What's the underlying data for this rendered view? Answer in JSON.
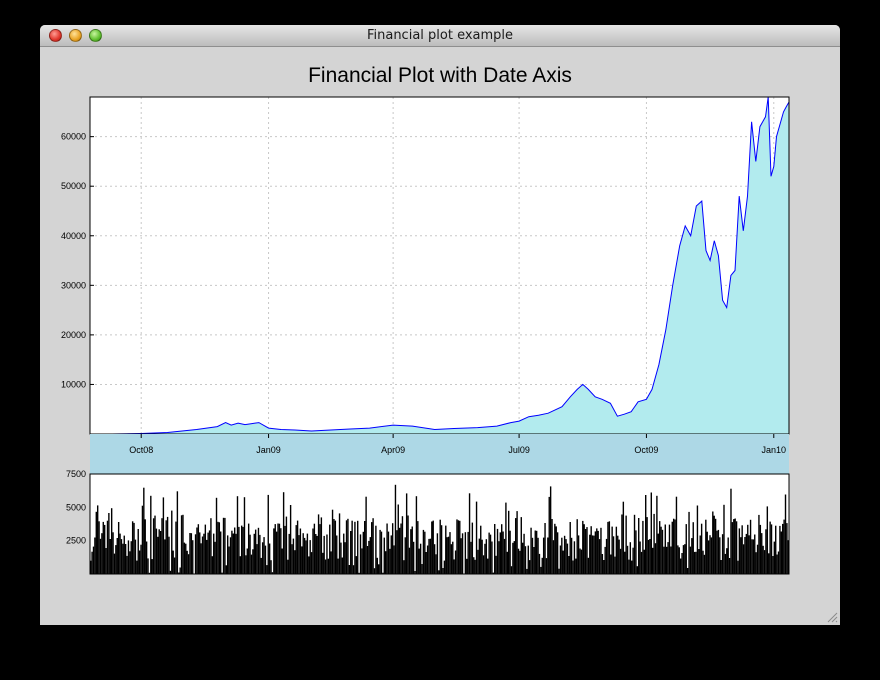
{
  "window": {
    "title": "Financial plot example"
  },
  "chart_data": {
    "type": "area",
    "title": "Financial Plot with Date Axis",
    "xlabel": "",
    "ylabel": "",
    "grid": true,
    "xlim": [
      "2008-08-25",
      "2010-01-12"
    ],
    "ylim": [
      0,
      68000
    ],
    "x_ticks": [
      "Oct08",
      "Jan09",
      "Apr09",
      "Jul09",
      "Oct09",
      "Jan10"
    ],
    "x_tick_dates": [
      "2008-10-01",
      "2009-01-01",
      "2009-04-01",
      "2009-07-01",
      "2009-10-01",
      "2010-01-01"
    ],
    "y_ticks": [
      10000,
      20000,
      30000,
      40000,
      50000,
      60000
    ],
    "series": [
      {
        "x": [
          "2008-08-25",
          "2008-09-10",
          "2008-10-01",
          "2008-10-20",
          "2008-11-10",
          "2008-11-25",
          "2008-12-01",
          "2008-12-05",
          "2008-12-10",
          "2008-12-15",
          "2008-12-20",
          "2008-12-25",
          "2009-01-01",
          "2009-01-10",
          "2009-01-20",
          "2009-02-01",
          "2009-02-15",
          "2009-03-01",
          "2009-03-15",
          "2009-04-01",
          "2009-04-15",
          "2009-05-01",
          "2009-05-15",
          "2009-06-01",
          "2009-06-15",
          "2009-06-25",
          "2009-07-01",
          "2009-07-08",
          "2009-07-15",
          "2009-07-22",
          "2009-08-01",
          "2009-08-07",
          "2009-08-12",
          "2009-08-16",
          "2009-08-20",
          "2009-08-25",
          "2009-08-30",
          "2009-09-05",
          "2009-09-10",
          "2009-09-15",
          "2009-09-20",
          "2009-09-25",
          "2009-10-01",
          "2009-10-05",
          "2009-10-10",
          "2009-10-15",
          "2009-10-20",
          "2009-10-25",
          "2009-10-29",
          "2009-11-02",
          "2009-11-06",
          "2009-11-10",
          "2009-11-13",
          "2009-11-16",
          "2009-11-19",
          "2009-11-22",
          "2009-11-25",
          "2009-11-28",
          "2009-12-01",
          "2009-12-04",
          "2009-12-07",
          "2009-12-10",
          "2009-12-13",
          "2009-12-16",
          "2009-12-19",
          "2009-12-22",
          "2009-12-24",
          "2009-12-26",
          "2009-12-28",
          "2009-12-30",
          "2010-01-01",
          "2010-01-03",
          "2010-01-05",
          "2010-01-08",
          "2010-01-10",
          "2010-01-12"
        ],
        "y": [
          0,
          0,
          100,
          300,
          900,
          1500,
          2300,
          1800,
          2200,
          1900,
          2100,
          2300,
          1200,
          900,
          800,
          600,
          800,
          1000,
          1200,
          1800,
          1600,
          900,
          1100,
          1300,
          1600,
          2300,
          2600,
          3500,
          3800,
          4200,
          5500,
          7500,
          9000,
          10000,
          9000,
          7500,
          7000,
          6200,
          3600,
          4000,
          4500,
          6500,
          7000,
          9000,
          14000,
          21000,
          30000,
          38000,
          42000,
          40000,
          46000,
          47000,
          37000,
          35000,
          39000,
          36000,
          27000,
          25500,
          32000,
          33000,
          48000,
          41000,
          48000,
          63000,
          55000,
          62000,
          63000,
          64000,
          68000,
          52000,
          54000,
          60000,
          62000,
          65000,
          66000,
          67000
        ]
      }
    ],
    "volume": {
      "ylim": [
        0,
        7500
      ],
      "y_ticks": [
        2500,
        5000,
        7500
      ],
      "count": 500,
      "seed": 7
    },
    "colors": {
      "line": "#0000ff",
      "fill": "#b2ebee",
      "axis_band": "#add8e6",
      "bars": "#000000",
      "grid": "#c8c8c8"
    }
  }
}
